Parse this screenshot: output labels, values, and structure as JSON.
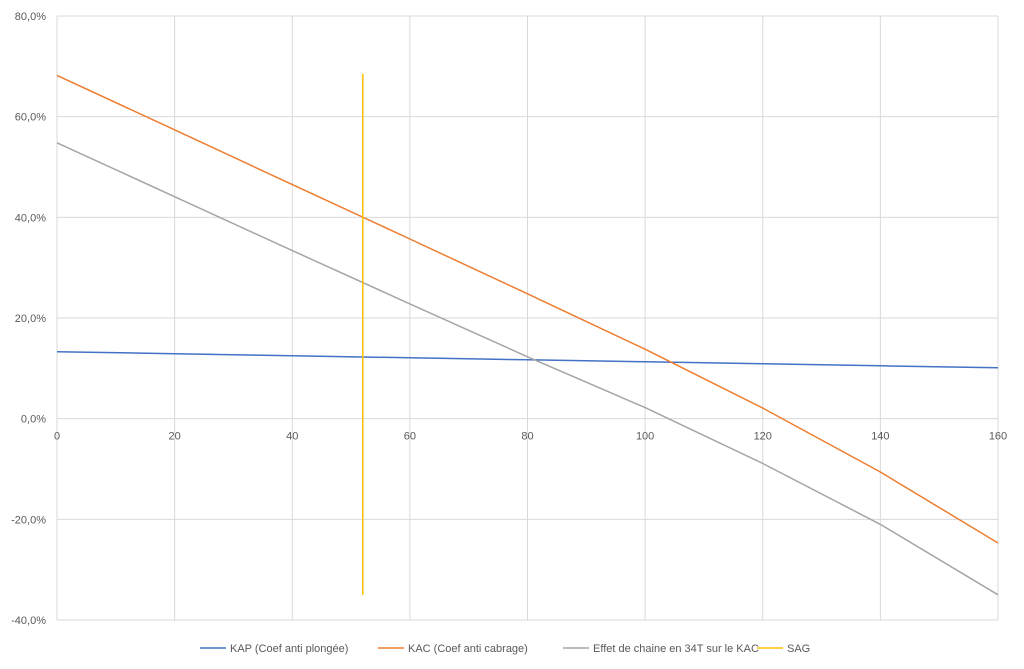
{
  "chart_data": {
    "type": "line",
    "title": "",
    "xlabel": "",
    "ylabel": "",
    "xlim": [
      0,
      160
    ],
    "ylim": [
      -40,
      80
    ],
    "x_ticks": [
      0,
      20,
      40,
      60,
      80,
      100,
      120,
      140,
      160
    ],
    "x_tick_labels": [
      "0",
      "20",
      "40",
      "60",
      "80",
      "100",
      "120",
      "140",
      "160"
    ],
    "y_ticks": [
      -40,
      -20,
      0,
      20,
      40,
      60,
      80
    ],
    "y_tick_labels": [
      "-40,0%",
      "-20,0%",
      "0,0%",
      "20,0%",
      "40,0%",
      "60,0%",
      "80,0%"
    ],
    "grid": true,
    "legend_position": "bottom",
    "series": [
      {
        "name": "KAP (Coef anti plongée)",
        "color": "#4472C4",
        "x": [
          0,
          20,
          40,
          60,
          80,
          100,
          120,
          140,
          160
        ],
        "y": [
          13.3,
          12.9,
          12.5,
          12.1,
          11.7,
          11.3,
          10.9,
          10.5,
          10.1
        ]
      },
      {
        "name": "KAC (Coef anti cabrage)",
        "color": "#ED7D31",
        "x": [
          0,
          20,
          40,
          60,
          80,
          100,
          120,
          140,
          160
        ],
        "y": [
          68.2,
          57.4,
          46.5,
          35.7,
          24.8,
          13.8,
          2.1,
          -10.6,
          -24.7
        ]
      },
      {
        "name": "Effet de chaine en 34T sur le KAC",
        "color": "#A5A5A5",
        "x": [
          0,
          20,
          40,
          60,
          80,
          100,
          120,
          140,
          160
        ],
        "y": [
          54.8,
          44.1,
          33.4,
          22.8,
          12.3,
          2.2,
          -8.9,
          -21.0,
          -35.0
        ]
      },
      {
        "name": "SAG",
        "color": "#FFC000",
        "x": [
          52,
          52
        ],
        "y": [
          68.5,
          -35.0
        ]
      }
    ]
  }
}
